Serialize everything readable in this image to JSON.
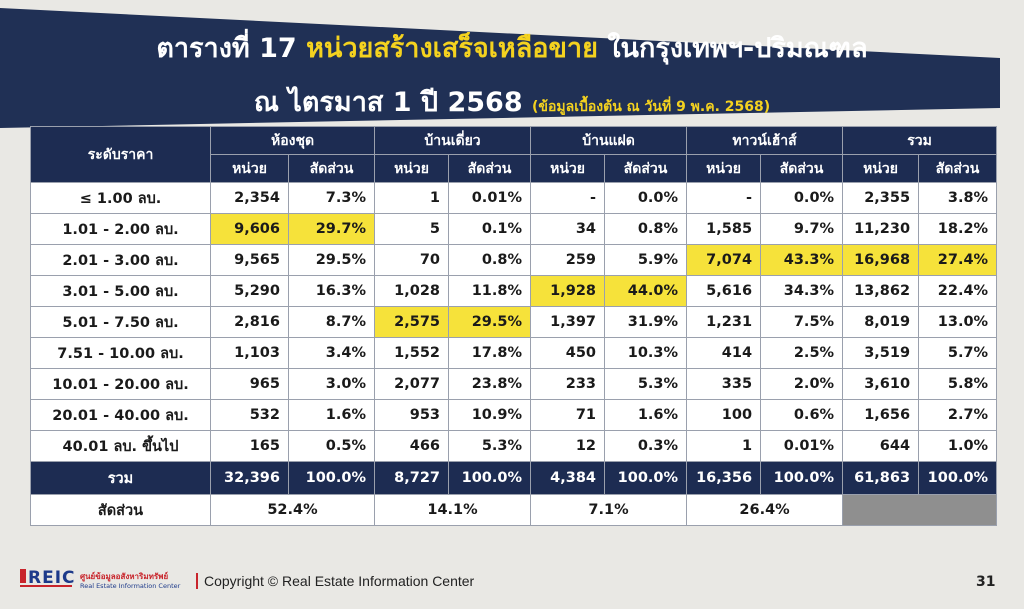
{
  "title": {
    "prefix": "ตารางที่ 17",
    "highlight": "หน่วยสร้างเสร็จเหลือขาย",
    "suffix": "ในกรุงเทพฯ-ปริมณฑล",
    "line2": "ณ ไตรมาส 1 ปี 2568",
    "note": "(ข้อมูลเบื้องต้น ณ วันที่ 9 พ.ค. 2568)"
  },
  "table": {
    "price_header": "ระดับราคา",
    "groups": [
      "ห้องชุด",
      "บ้านเดี่ยว",
      "บ้านแฝด",
      "ทาวน์เฮ้าส์",
      "รวม"
    ],
    "sub_headers": [
      "หน่วย",
      "สัดส่วน"
    ],
    "rows": [
      {
        "price": "≤ 1.00 ลบ.",
        "cells": [
          "2,354",
          "7.3%",
          "1",
          "0.01%",
          "-",
          "0.0%",
          "-",
          "0.0%",
          "2,355",
          "3.8%"
        ]
      },
      {
        "price": "1.01 - 2.00 ลบ.",
        "cells": [
          "9,606",
          "29.7%",
          "5",
          "0.1%",
          "34",
          "0.8%",
          "1,585",
          "9.7%",
          "11,230",
          "18.2%"
        ]
      },
      {
        "price": "2.01 - 3.00 ลบ.",
        "cells": [
          "9,565",
          "29.5%",
          "70",
          "0.8%",
          "259",
          "5.9%",
          "7,074",
          "43.3%",
          "16,968",
          "27.4%"
        ]
      },
      {
        "price": "3.01 - 5.00 ลบ.",
        "cells": [
          "5,290",
          "16.3%",
          "1,028",
          "11.8%",
          "1,928",
          "44.0%",
          "5,616",
          "34.3%",
          "13,862",
          "22.4%"
        ]
      },
      {
        "price": "5.01 - 7.50 ลบ.",
        "cells": [
          "2,816",
          "8.7%",
          "2,575",
          "29.5%",
          "1,397",
          "31.9%",
          "1,231",
          "7.5%",
          "8,019",
          "13.0%"
        ]
      },
      {
        "price": "7.51 - 10.00 ลบ.",
        "cells": [
          "1,103",
          "3.4%",
          "1,552",
          "17.8%",
          "450",
          "10.3%",
          "414",
          "2.5%",
          "3,519",
          "5.7%"
        ]
      },
      {
        "price": "10.01 - 20.00 ลบ.",
        "cells": [
          "965",
          "3.0%",
          "2,077",
          "23.8%",
          "233",
          "5.3%",
          "335",
          "2.0%",
          "3,610",
          "5.8%"
        ]
      },
      {
        "price": "20.01 - 40.00 ลบ.",
        "cells": [
          "532",
          "1.6%",
          "953",
          "10.9%",
          "71",
          "1.6%",
          "100",
          "0.6%",
          "1,656",
          "2.7%"
        ]
      },
      {
        "price": "40.01 ลบ. ขึ้นไป",
        "cells": [
          "165",
          "0.5%",
          "466",
          "5.3%",
          "12",
          "0.3%",
          "1",
          "0.01%",
          "644",
          "1.0%"
        ]
      }
    ],
    "highlights": [
      [
        1,
        0
      ],
      [
        1,
        1
      ],
      [
        4,
        2
      ],
      [
        4,
        3
      ],
      [
        3,
        4
      ],
      [
        3,
        5
      ],
      [
        2,
        6
      ],
      [
        2,
        7
      ],
      [
        2,
        8
      ],
      [
        2,
        9
      ]
    ],
    "total_label": "รวม",
    "total_cells": [
      "32,396",
      "100.0%",
      "8,727",
      "100.0%",
      "4,384",
      "100.0%",
      "16,356",
      "100.0%",
      "61,863",
      "100.0%"
    ],
    "share_label": "สัดส่วน",
    "shares": [
      "52.4%",
      "14.1%",
      "7.1%",
      "26.4%"
    ]
  },
  "footer": {
    "logo": "REIC",
    "logo_thai": "ศูนย์ข้อมูลอสังหาริมทรัพย์",
    "logo_en": "Real Estate Information Center",
    "copyright": "Copyright © Real Estate Information Center",
    "page_number": "31"
  },
  "colors": {
    "header_navy": "#1d2c52",
    "highlight_yellow": "#f6e23a",
    "title_yellow": "#f4d21f"
  }
}
